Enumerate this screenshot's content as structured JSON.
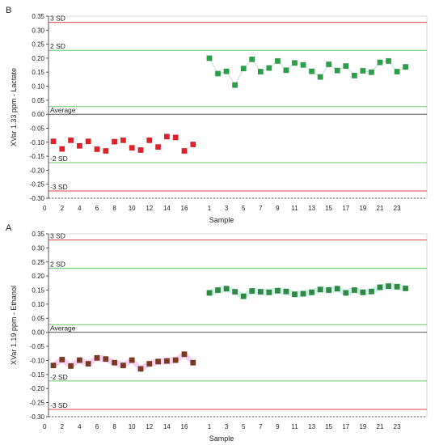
{
  "colors": {
    "sd3": "#d94848",
    "sd2": "#6cc86c",
    "average": "#3a3a3a",
    "axis": "#555555",
    "panelB_group1": "#e0202a",
    "panelB_group2": "#2aa04a",
    "panelA_group1": "#7a3a22",
    "panelA_group2": "#2e8a44",
    "panelA_band1": "#f6c8ee",
    "panelA_band2": "#c8f0e4"
  },
  "chart_data": [
    {
      "type": "scatter",
      "panel_label": "B",
      "ylabel": "XVar 1.33 ppm - Lactate",
      "xlabel": "Sample",
      "ylim": [
        -0.3,
        0.35
      ],
      "yticks": [
        "0.35",
        "0.30",
        "0.25",
        "0.20",
        "0.15",
        "0.10",
        "0.05",
        "0.00",
        "-0.05",
        "-0.10",
        "-0.15",
        "-0.20",
        "-0.25",
        "-0.30"
      ],
      "limit_lines": [
        {
          "label": "3 SD",
          "value": 0.328,
          "kind": "sd3"
        },
        {
          "label": "2 SD",
          "value": 0.228,
          "kind": "sd2"
        },
        {
          "label": "",
          "value": 0.027,
          "kind": "sd2"
        },
        {
          "label": "Average",
          "value": 0.0,
          "kind": "average"
        },
        {
          "label": "-2 SD",
          "value": -0.173,
          "kind": "sd2"
        },
        {
          "label": "-3 SD",
          "value": -0.274,
          "kind": "sd3"
        }
      ],
      "groups": [
        {
          "ticks": [
            "0",
            "2",
            "4",
            "6",
            "8",
            "10",
            "12",
            "14",
            "16"
          ],
          "x": [
            1,
            2,
            3,
            4,
            5,
            6,
            7,
            8,
            9,
            10,
            11,
            12,
            13,
            14,
            15,
            16,
            17
          ],
          "y": [
            -0.097,
            -0.124,
            -0.093,
            -0.113,
            -0.097,
            -0.125,
            -0.131,
            -0.098,
            -0.093,
            -0.12,
            -0.128,
            -0.093,
            -0.117,
            -0.08,
            -0.083,
            -0.131,
            -0.108
          ],
          "connected": false
        },
        {
          "ticks": [
            "1",
            "3",
            "5",
            "7",
            "9",
            "11",
            "13",
            "15",
            "17",
            "19",
            "21",
            "23"
          ],
          "x": [
            1,
            2,
            3,
            4,
            5,
            6,
            7,
            8,
            9,
            10,
            11,
            12,
            13,
            14,
            15,
            16,
            17,
            18,
            19,
            20,
            21,
            22,
            23,
            24
          ],
          "y": [
            0.2,
            0.145,
            0.153,
            0.104,
            0.163,
            0.196,
            0.152,
            0.165,
            0.19,
            0.157,
            0.183,
            0.176,
            0.153,
            0.133,
            0.178,
            0.156,
            0.172,
            0.138,
            0.155,
            0.15,
            0.185,
            0.19,
            0.152,
            0.169
          ],
          "connected": true
        }
      ]
    },
    {
      "type": "scatter",
      "panel_label": "A",
      "ylabel": "XVar 1.19 ppm - Ethanol",
      "xlabel": "Sample",
      "ylim": [
        -0.3,
        0.35
      ],
      "yticks": [
        "0.35",
        "0.30",
        "0.25",
        "0.20",
        "0.15",
        "0.10",
        "0.05",
        "0.00",
        "-0.05",
        "-0.10",
        "-0.15",
        "-0.20",
        "-0.25",
        "-0.30"
      ],
      "limit_lines": [
        {
          "label": "3 SD",
          "value": 0.328,
          "kind": "sd3"
        },
        {
          "label": "2 SD",
          "value": 0.228,
          "kind": "sd2"
        },
        {
          "label": "",
          "value": 0.027,
          "kind": "sd2"
        },
        {
          "label": "Average",
          "value": 0.0,
          "kind": "average"
        },
        {
          "label": "-2 SD",
          "value": -0.173,
          "kind": "sd2"
        },
        {
          "label": "-3 SD",
          "value": -0.274,
          "kind": "sd3"
        }
      ],
      "groups": [
        {
          "ticks": [
            "0",
            "2",
            "4",
            "6",
            "8",
            "10",
            "12",
            "14",
            "16"
          ],
          "x": [
            1,
            2,
            3,
            4,
            5,
            6,
            7,
            8,
            9,
            10,
            11,
            12,
            13,
            14,
            15,
            16,
            17
          ],
          "y": [
            -0.118,
            -0.097,
            -0.12,
            -0.099,
            -0.112,
            -0.091,
            -0.095,
            -0.108,
            -0.118,
            -0.099,
            -0.13,
            -0.112,
            -0.104,
            -0.102,
            -0.099,
            -0.078,
            -0.108
          ],
          "connected": false
        },
        {
          "ticks": [
            "1",
            "3",
            "5",
            "7",
            "9",
            "11",
            "13",
            "15",
            "17",
            "19",
            "21",
            "23"
          ],
          "x": [
            1,
            2,
            3,
            4,
            5,
            6,
            7,
            8,
            9,
            10,
            11,
            12,
            13,
            14,
            15,
            16,
            17,
            18,
            19,
            20,
            21,
            22,
            23,
            24
          ],
          "y": [
            0.14,
            0.15,
            0.155,
            0.144,
            0.128,
            0.147,
            0.144,
            0.142,
            0.148,
            0.145,
            0.135,
            0.137,
            0.142,
            0.152,
            0.15,
            0.155,
            0.14,
            0.15,
            0.142,
            0.145,
            0.16,
            0.164,
            0.162,
            0.156
          ],
          "connected": false
        }
      ]
    }
  ]
}
